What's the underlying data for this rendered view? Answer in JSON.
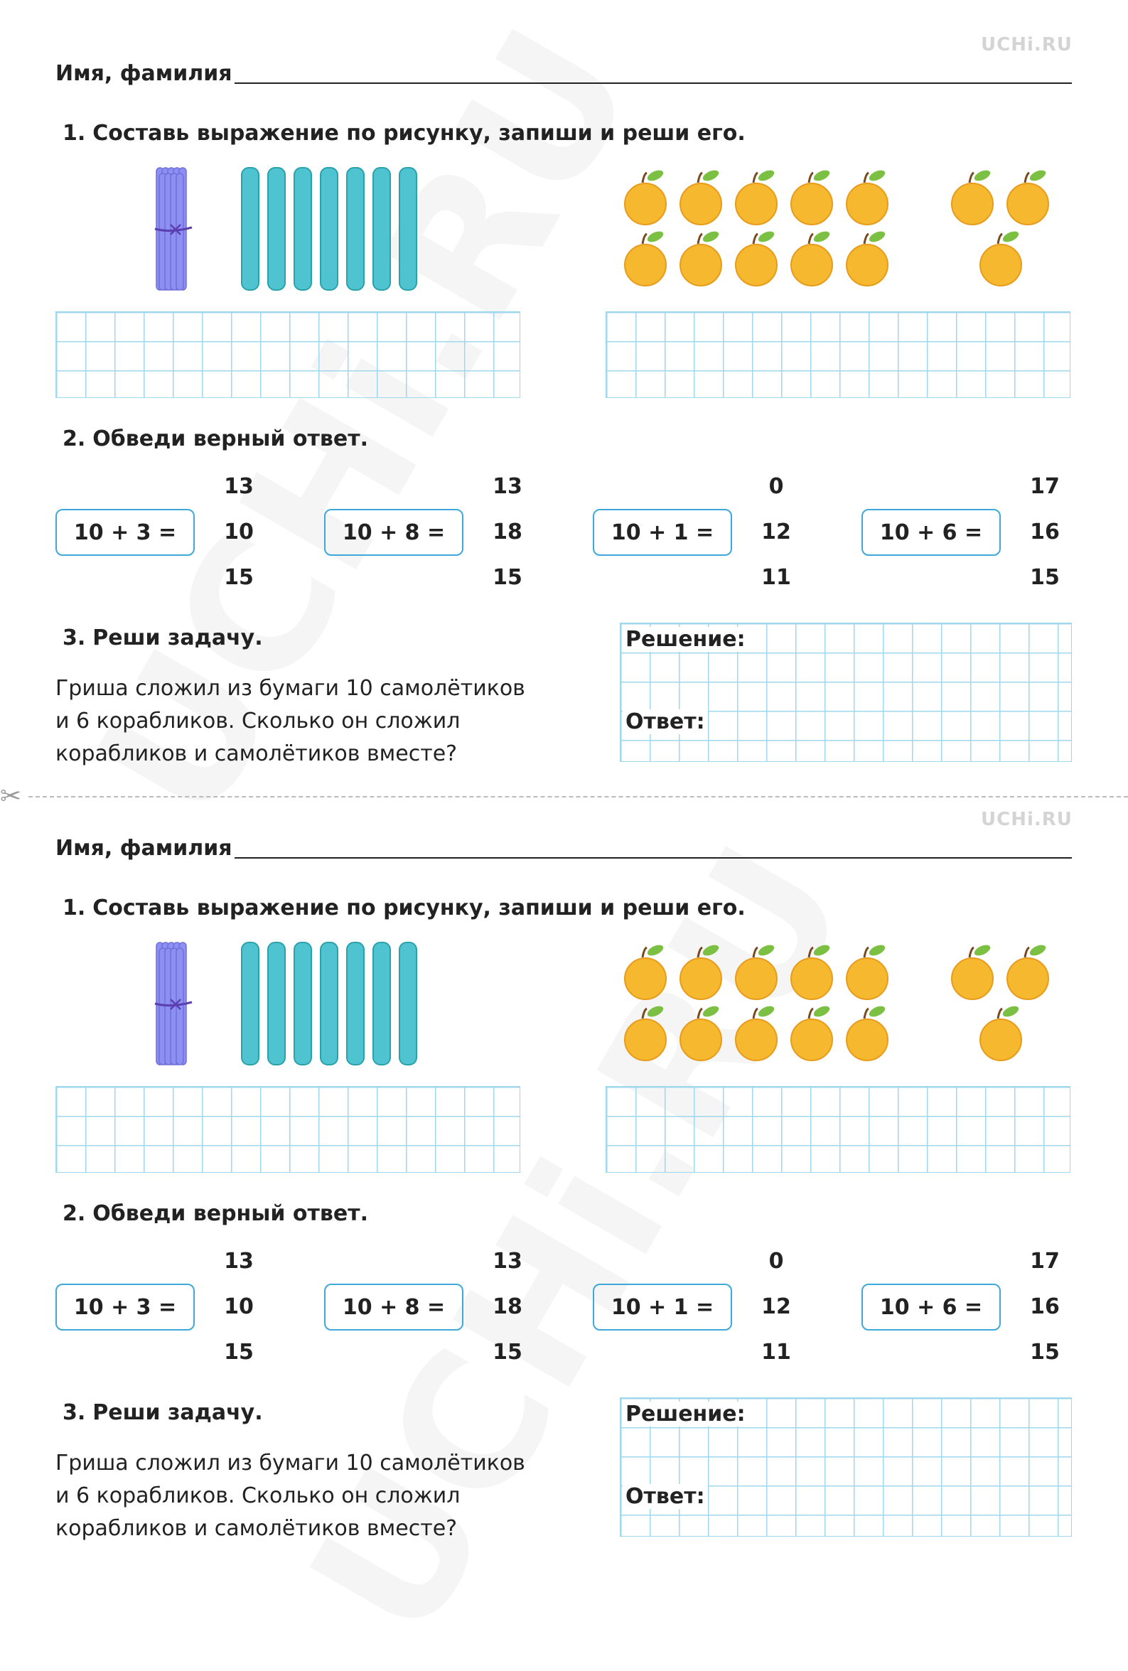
{
  "logo": "UCHi.RU",
  "name_label": "Имя, фамилия",
  "task1": {
    "number": "1.",
    "title": "Составь выражение по рисунку, запиши и реши его."
  },
  "task2": {
    "number": "2.",
    "title": "Обведи верный ответ.",
    "items": [
      {
        "expr": "10 + 3 =",
        "options": [
          "13",
          "10",
          "15"
        ]
      },
      {
        "expr": "10 + 8 =",
        "options": [
          "13",
          "18",
          "15"
        ]
      },
      {
        "expr": "10 + 1 =",
        "options": [
          "0",
          "12",
          "11"
        ]
      },
      {
        "expr": "10 + 6 =",
        "options": [
          "17",
          "16",
          "15"
        ]
      }
    ]
  },
  "task3": {
    "number": "3.",
    "title": "Реши задачу.",
    "text": [
      "Гриша сложил из бумаги 10 самолётиков",
      "и 6 корабликов. Сколько он сложил",
      "корабликов и самолётиков вместе?"
    ],
    "solution_label": "Решение:",
    "answer_label": "Ответ:"
  },
  "illustration": {
    "bundle_icon": "stick-bundle-icon",
    "stick_count": 7,
    "stick_color": "#4fc3cf",
    "apple_icon": "apricot-icon",
    "apple_color": "#f5b82e",
    "apples_left_rows": 2,
    "apples_left_cols": 5,
    "apples_right_count": 3
  },
  "colors": {
    "grid": "#9fd8ec",
    "box_border": "#3ea8db",
    "bundle": "#8e8ff2"
  }
}
